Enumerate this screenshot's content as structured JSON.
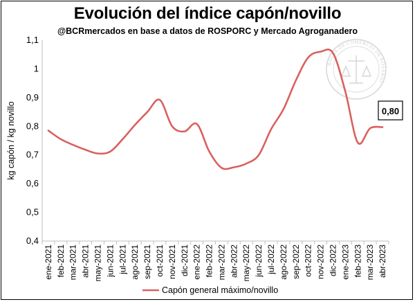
{
  "chart_data": {
    "type": "line",
    "title": "Evolución del índice capón/novillo",
    "subtitle": "@BCRmercados en base a datos de ROSPORC y Mercado Agroganadero",
    "ylabel": "kg capón / kg novillo",
    "xlabel": "",
    "ylim": [
      0.4,
      1.1
    ],
    "yticks": [
      "0,4",
      "0,5",
      "0,6",
      "0,7",
      "0,8",
      "0,9",
      "1",
      "1,1"
    ],
    "grid": false,
    "legend": "bottom",
    "categories": [
      "ene-2021",
      "feb-2021",
      "mar-2021",
      "abr-2021",
      "may-2021",
      "jun-2021",
      "jul-2021",
      "ago-2021",
      "sep-2021",
      "oct-2021",
      "nov-2021",
      "dic-2021",
      "ene-2022",
      "feb-2022",
      "mar-2022",
      "abr-2022",
      "may-2022",
      "jun-2022",
      "jul-2022",
      "ago-2022",
      "sep-2022",
      "oct-2022",
      "nov-2022",
      "dic-2022",
      "ene-2023",
      "feb-2023",
      "mar-2023",
      "abr-2023"
    ],
    "series": [
      {
        "name": "Capón general máximo/novillo",
        "color": "#d9605f",
        "values": [
          0.785,
          0.755,
          0.735,
          0.718,
          0.705,
          0.712,
          0.755,
          0.805,
          0.85,
          0.892,
          0.8,
          0.782,
          0.808,
          0.712,
          0.655,
          0.657,
          0.67,
          0.7,
          0.79,
          0.86,
          0.96,
          1.04,
          1.06,
          1.055,
          0.92,
          0.743,
          0.793,
          0.797
        ]
      }
    ],
    "annotation": {
      "text": "0,80",
      "color": "#000000"
    }
  },
  "watermark": {
    "text": "BOLSA DE COMERCIO DE ROSARIO",
    "icon": "seal-icon",
    "color": "#c9c9c9"
  }
}
